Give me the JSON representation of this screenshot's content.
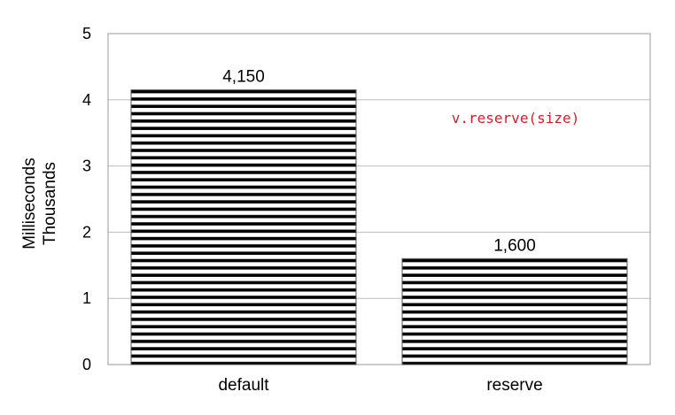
{
  "chart_data": {
    "type": "bar",
    "categories": [
      "default",
      "reserve"
    ],
    "values": [
      4.15,
      1.6
    ],
    "data_labels": [
      "4,150",
      "1,600"
    ],
    "ylabel_lines": [
      "Milliseconds",
      "Thousands"
    ],
    "ylim": [
      0,
      5
    ],
    "yticks": [
      0,
      1,
      2,
      3,
      4,
      5
    ],
    "grid": true,
    "bar_fill": "horizontal-stripes",
    "annotation": "v.reserve(size)",
    "annotation_color": "#d0202a"
  }
}
